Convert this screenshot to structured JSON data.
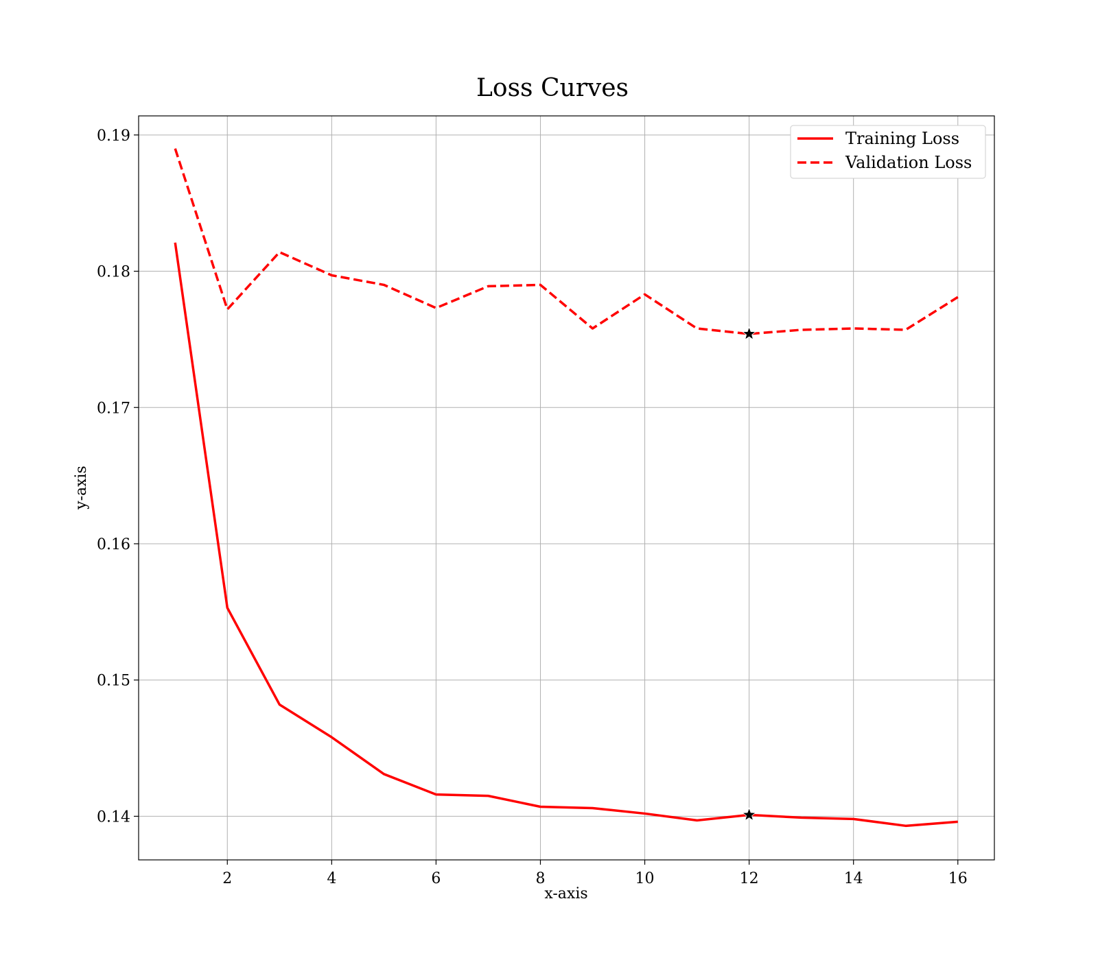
{
  "chart_data": {
    "type": "line",
    "title": "Loss Curves",
    "xlabel": "x-axis",
    "ylabel": "y-axis",
    "xlim": [
      0.3,
      16.7
    ],
    "ylim": [
      0.1368,
      0.1914
    ],
    "x_ticks": [
      2,
      4,
      6,
      8,
      10,
      12,
      14,
      16
    ],
    "y_ticks": [
      0.14,
      0.15,
      0.16,
      0.17,
      0.18,
      0.19
    ],
    "y_tick_labels": [
      "0.14",
      "0.15",
      "0.16",
      "0.17",
      "0.18",
      "0.19"
    ],
    "grid": true,
    "legend_position": "top-right",
    "x": [
      1,
      2,
      3,
      4,
      5,
      6,
      7,
      8,
      9,
      10,
      11,
      12,
      13,
      14,
      15,
      16
    ],
    "series": [
      {
        "name": "Training Loss",
        "color": "#ff0000",
        "line_style": "solid",
        "values": [
          0.1821,
          0.1553,
          0.1482,
          0.1458,
          0.1431,
          0.1416,
          0.1415,
          0.1407,
          0.1406,
          0.1402,
          0.1397,
          0.1401,
          0.1399,
          0.1398,
          0.1393,
          0.1396
        ]
      },
      {
        "name": "Validation Loss",
        "color": "#ff0000",
        "line_style": "dashed",
        "values": [
          0.189,
          0.1772,
          0.1814,
          0.1797,
          0.179,
          0.1773,
          0.1789,
          0.179,
          0.1758,
          0.1783,
          0.1758,
          0.1754,
          0.1757,
          0.1758,
          0.1757,
          0.1781
        ]
      }
    ],
    "markers": [
      {
        "series": "Training Loss",
        "x": 12,
        "y": 0.1401,
        "symbol": "star"
      },
      {
        "series": "Validation Loss",
        "x": 12,
        "y": 0.1754,
        "symbol": "star"
      }
    ]
  }
}
